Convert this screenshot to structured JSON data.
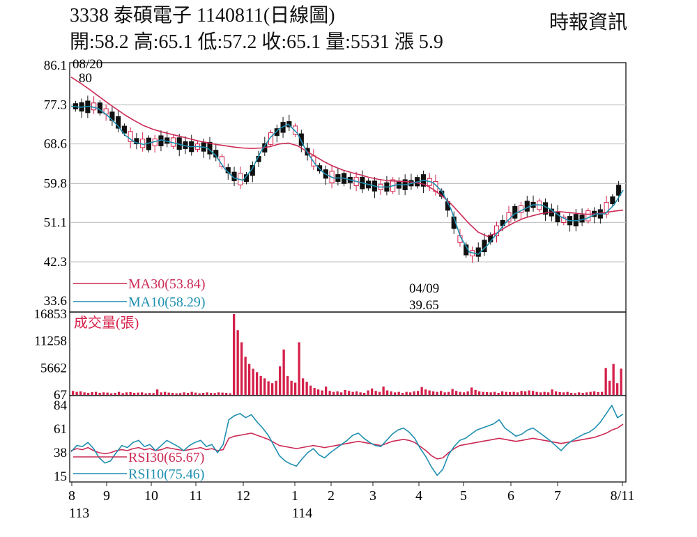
{
  "header": {
    "title": "3338  泰碩電子 1140811(日線圖)",
    "source": "時報資訊",
    "ohlc": "開:58.2 高:65.1 低:57.2 收:65.1 量:5531 漲 5.9"
  },
  "chart_data": {
    "type": "candlestick",
    "title": "3338  泰碩電子 1140811(日線圖)",
    "price_panel": {
      "ylim": [
        33.6,
        86.1
      ],
      "yticks": [
        "86.1",
        "77.3",
        "68.6",
        "59.8",
        "51.1",
        "42.3",
        "33.6"
      ],
      "ma30": [
        83.5,
        82.2,
        80.8,
        79.3,
        77.8,
        76.4,
        75.0,
        73.8,
        72.7,
        71.9,
        71.3,
        70.8,
        70.3,
        69.8,
        69.3,
        68.9,
        68.5,
        68.2,
        67.9,
        67.7,
        67.6,
        67.7,
        68.0,
        68.6,
        68.8,
        68.2,
        67.0,
        65.8,
        64.6,
        63.6,
        62.8,
        62.2,
        61.7,
        61.1,
        60.7,
        60.4,
        60.3,
        60.2,
        60.0,
        59.6,
        58.5,
        57.0,
        55.2,
        53.0,
        50.8,
        48.9,
        48.0,
        48.7,
        50.0,
        51.1,
        52.0,
        52.6,
        53.1,
        53.4,
        53.5,
        53.3,
        53.1,
        52.9,
        53.0,
        53.3,
        53.6,
        53.84
      ],
      "ma10": [
        77.0,
        76.8,
        77.0,
        76.5,
        75.0,
        73.0,
        70.5,
        69.0,
        68.5,
        69.0,
        69.5,
        69.0,
        68.5,
        68.0,
        68.0,
        67.8,
        66.0,
        63.0,
        61.0,
        60.5,
        63.0,
        67.0,
        70.0,
        72.0,
        73.0,
        71.0,
        67.0,
        64.0,
        62.0,
        61.0,
        61.0,
        60.5,
        60.0,
        59.5,
        59.0,
        59.0,
        59.5,
        59.5,
        60.0,
        60.5,
        60.0,
        58.0,
        54.0,
        48.0,
        44.5,
        44.0,
        46.0,
        48.5,
        51.0,
        53.0,
        54.0,
        55.0,
        55.0,
        54.0,
        52.5,
        51.5,
        51.5,
        52.0,
        53.0,
        53.0,
        55.0,
        58.29
      ],
      "candle_count": 90,
      "open_candles": [
        0,
        0,
        0,
        1,
        0,
        1,
        0,
        0,
        0,
        1,
        0,
        1,
        0,
        1,
        0,
        0,
        1,
        0,
        0,
        0,
        1,
        0,
        0,
        0,
        1,
        0,
        0,
        1,
        0,
        0,
        0,
        0,
        1,
        0,
        0,
        0,
        1,
        0,
        0,
        1,
        0,
        0,
        1,
        0,
        0,
        0,
        1,
        0,
        0,
        0,
        1,
        0,
        1,
        0,
        0,
        0,
        0,
        0,
        1,
        1
      ],
      "annotations": [
        {
          "text_top": "08/20",
          "text_bottom": "80",
          "date": "08/20",
          "value": "80"
        },
        {
          "text_top": "04/09",
          "text_bottom": "39.65",
          "date": "04/09",
          "value": "39.65"
        }
      ],
      "legend": [
        {
          "label": "MA30(53.84)",
          "color": "#cc2a55"
        },
        {
          "label": "MA10(58.29)",
          "color": "#1e8fb0"
        }
      ]
    },
    "volume_panel": {
      "label": "成交量(張)",
      "yticks": [
        "16853",
        "11258",
        "5662",
        "67"
      ],
      "ylim": [
        67,
        16853
      ],
      "volumes": [
        900,
        700,
        800,
        600,
        500,
        650,
        700,
        500,
        600,
        550,
        400,
        500,
        700,
        450,
        600,
        650,
        500,
        550,
        600,
        400,
        500,
        450,
        1200,
        600,
        700,
        550,
        500,
        400,
        450,
        600,
        500,
        700,
        550,
        400,
        500,
        600,
        500,
        450,
        600,
        550,
        500,
        400,
        16853,
        13500,
        11000,
        8000,
        6500,
        5500,
        4800,
        4000,
        3500,
        2900,
        2500,
        3000,
        6000,
        9500,
        4000,
        3000,
        2600,
        11000,
        3500,
        2800,
        2000,
        1500,
        1200,
        1000,
        1800,
        900,
        700,
        800,
        600,
        1100,
        900,
        700,
        800,
        600,
        500,
        1000,
        1400,
        900,
        700,
        1800,
        1000,
        800,
        600,
        700,
        500,
        700,
        600,
        800,
        900,
        1700,
        1200,
        1000,
        800,
        700,
        900,
        600,
        700,
        1300,
        900,
        700,
        600,
        800,
        1600,
        1100,
        800,
        700,
        650,
        600,
        700,
        500,
        800,
        700,
        650,
        700,
        600,
        900,
        800,
        1000,
        900,
        700,
        600,
        700,
        600,
        1200,
        800,
        650,
        600,
        700,
        500,
        450,
        600,
        500,
        600,
        700,
        800,
        650,
        700,
        5662,
        3000,
        6500,
        2500,
        5531
      ]
    },
    "rsi_panel": {
      "yticks": [
        "84",
        "61",
        "38",
        "15"
      ],
      "ylim": [
        15,
        84
      ],
      "rsi30": [
        40,
        42,
        41,
        43,
        40,
        38,
        37,
        38,
        40,
        41,
        40,
        42,
        43,
        41,
        42,
        40,
        41,
        43,
        42,
        41,
        40,
        41,
        42,
        43,
        41,
        42,
        40,
        41,
        52,
        54,
        55,
        56,
        57,
        55,
        53,
        51,
        48,
        45,
        44,
        43,
        42,
        43,
        44,
        45,
        44,
        43,
        44,
        45,
        46,
        47,
        48,
        49,
        48,
        47,
        46,
        45,
        47,
        49,
        50,
        51,
        50,
        48,
        44,
        40,
        35,
        32,
        33,
        38,
        42,
        45,
        46,
        47,
        48,
        49,
        50,
        51,
        52,
        51,
        50,
        49,
        50,
        51,
        52,
        51,
        50,
        49,
        48,
        47,
        48,
        49,
        50,
        51,
        52,
        53,
        55,
        57,
        60,
        62,
        65.67
      ],
      "rsi10": [
        39,
        45,
        44,
        48,
        42,
        33,
        28,
        30,
        38,
        45,
        43,
        48,
        50,
        44,
        46,
        40,
        45,
        50,
        47,
        44,
        40,
        45,
        48,
        50,
        44,
        46,
        38,
        46,
        70,
        74,
        76,
        72,
        75,
        68,
        62,
        55,
        45,
        35,
        30,
        27,
        25,
        32,
        38,
        42,
        36,
        33,
        38,
        42,
        46,
        50,
        55,
        57,
        52,
        48,
        45,
        44,
        50,
        56,
        60,
        62,
        58,
        52,
        42,
        34,
        24,
        16,
        22,
        36,
        44,
        50,
        52,
        56,
        60,
        62,
        64,
        66,
        70,
        62,
        58,
        54,
        56,
        60,
        62,
        58,
        54,
        50,
        45,
        40,
        46,
        50,
        53,
        56,
        58,
        62,
        68,
        76,
        84,
        72,
        75.46
      ],
      "legend": [
        {
          "label": "RSI30(65.67)",
          "color": "#cc2a55"
        },
        {
          "label": "RSI10(75.46)",
          "color": "#1e8fb0"
        }
      ]
    },
    "x_axis": {
      "months": [
        "8",
        "9",
        "10",
        "11",
        "12",
        "1",
        "2",
        "3",
        "4",
        "5",
        "6",
        "7",
        "8/11"
      ],
      "years": [
        {
          "label": "113",
          "at": "8"
        },
        {
          "label": "114",
          "at": "1"
        }
      ]
    },
    "colors": {
      "up": "#d4204a",
      "down": "#111111",
      "ma30": "#cc2a55",
      "ma10": "#1e8fb0",
      "grid": "#bcbcbc",
      "volume": "#d4204a"
    }
  }
}
